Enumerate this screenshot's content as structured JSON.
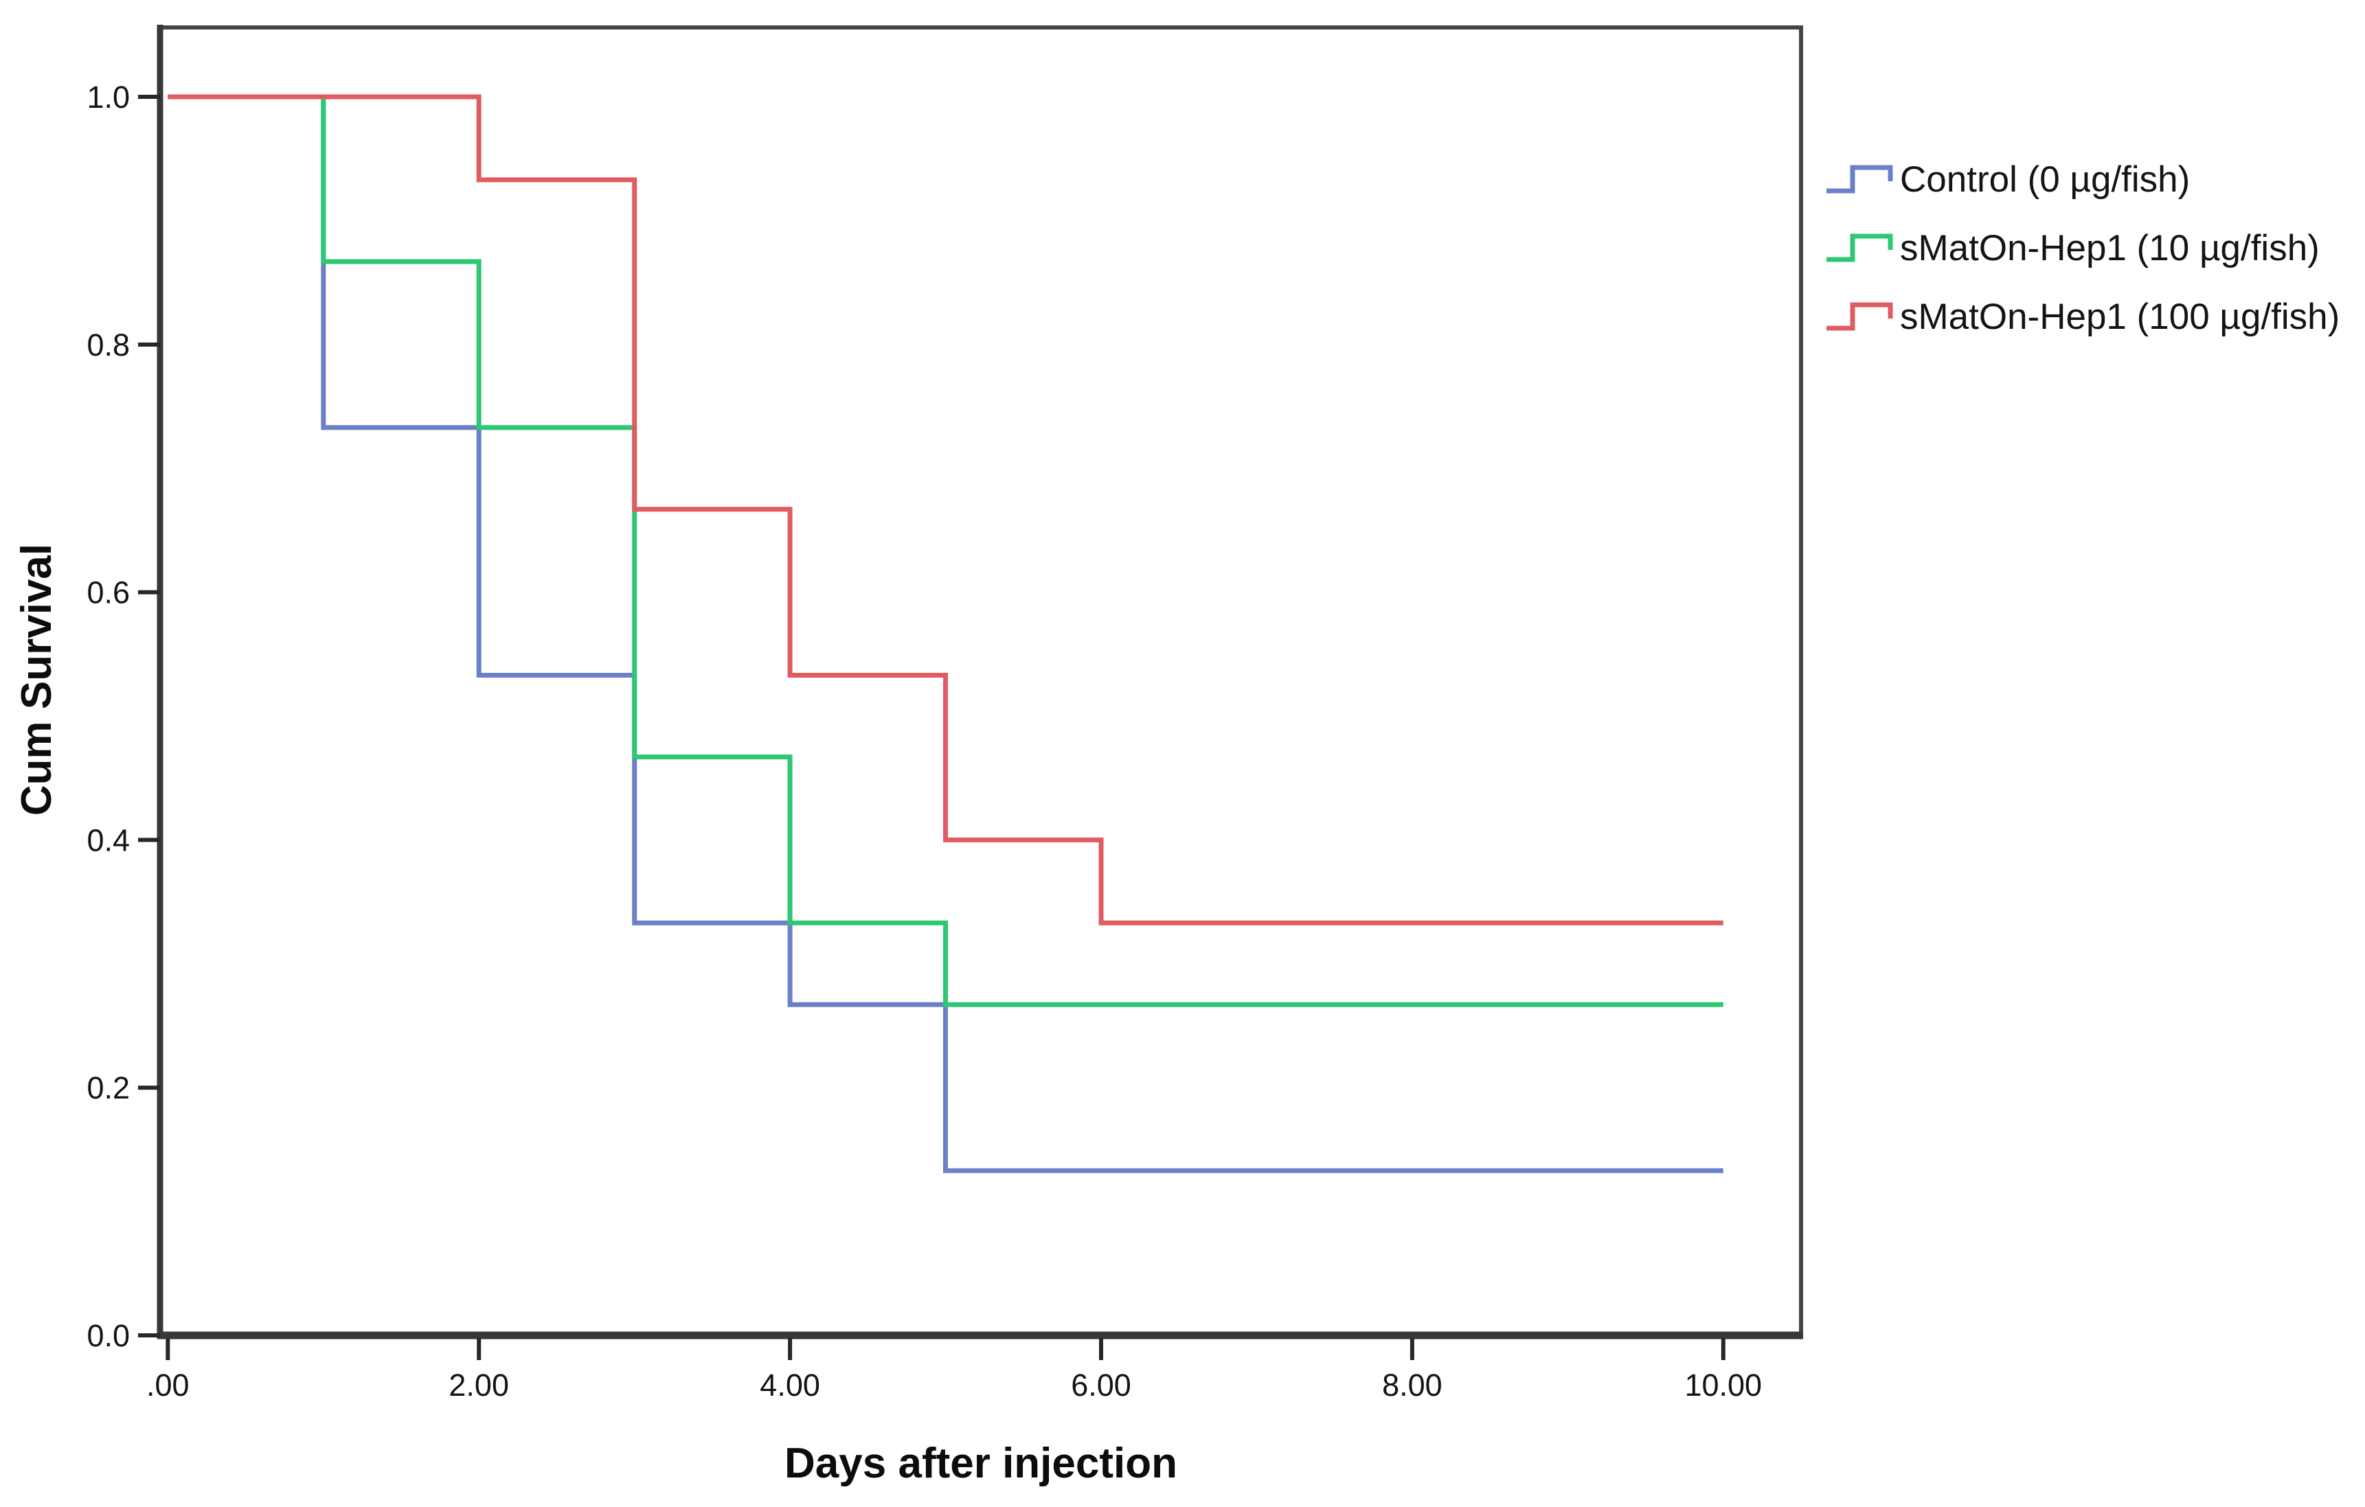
{
  "figure": {
    "background": "#ffffff"
  },
  "chart_data": {
    "type": "line",
    "subtype": "kaplan-meier-step-survival",
    "title": "",
    "xlabel": "Days after injection",
    "ylabel": "Cum Survival",
    "xlim": [
      -0.05,
      10.5
    ],
    "ylim": [
      0,
      1.056
    ],
    "x_ticks": [
      0,
      2,
      4,
      6,
      8,
      10
    ],
    "x_ticklabels": [
      ".00",
      "2.00",
      "4.00",
      "6.00",
      "8.00",
      "10.00"
    ],
    "y_ticks": [
      0.0,
      0.2,
      0.4,
      0.6,
      0.8,
      1.0
    ],
    "y_ticklabels": [
      "0.0",
      "0.2",
      "0.4",
      "0.6",
      "0.8",
      "1.0"
    ],
    "grid": false,
    "legend_position": "outside-top-right",
    "frame_color": "#454545",
    "text_color": "#141414",
    "series": [
      {
        "name": "Control (0 µg/fish)",
        "color": "#6b80c8",
        "points": [
          [
            0,
            1.0
          ],
          [
            1,
            1.0
          ],
          [
            1,
            0.733
          ],
          [
            2,
            0.733
          ],
          [
            2,
            0.533
          ],
          [
            3,
            0.533
          ],
          [
            3,
            0.333
          ],
          [
            4,
            0.333
          ],
          [
            4,
            0.267
          ],
          [
            5,
            0.267
          ],
          [
            5,
            0.133
          ],
          [
            10,
            0.133
          ]
        ]
      },
      {
        "name": "sMatOn-Hep1 (10 µg/fish)",
        "color": "#2ec873",
        "points": [
          [
            0,
            1.0
          ],
          [
            1,
            1.0
          ],
          [
            1,
            0.867
          ],
          [
            2,
            0.867
          ],
          [
            2,
            0.733
          ],
          [
            3,
            0.733
          ],
          [
            3,
            0.467
          ],
          [
            4,
            0.467
          ],
          [
            4,
            0.333
          ],
          [
            5,
            0.333
          ],
          [
            5,
            0.267
          ],
          [
            10,
            0.267
          ]
        ]
      },
      {
        "name": "sMatOn-Hep1 (100 µg/fish)",
        "color": "#e05c62",
        "points": [
          [
            0,
            1.0
          ],
          [
            2,
            1.0
          ],
          [
            2,
            0.933
          ],
          [
            3,
            0.933
          ],
          [
            3,
            0.667
          ],
          [
            4,
            0.667
          ],
          [
            4,
            0.533
          ],
          [
            5,
            0.533
          ],
          [
            5,
            0.4
          ],
          [
            6,
            0.4
          ],
          [
            6,
            0.333
          ],
          [
            10,
            0.333
          ]
        ]
      }
    ]
  }
}
